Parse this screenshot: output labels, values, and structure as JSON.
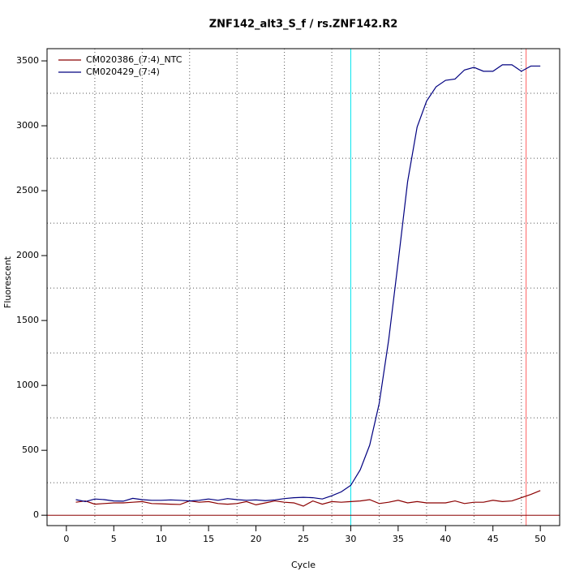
{
  "chart_data": {
    "type": "line",
    "title": "ZNF142_alt3_S_f / rs.ZNF142.R2",
    "x_label": "Cycle",
    "y_label": "Fluorescent",
    "x": [
      1,
      2,
      3,
      4,
      5,
      6,
      7,
      8,
      9,
      10,
      11,
      12,
      13,
      14,
      15,
      16,
      17,
      18,
      19,
      20,
      21,
      22,
      23,
      24,
      25,
      26,
      27,
      28,
      29,
      30,
      31,
      32,
      33,
      34,
      35,
      36,
      37,
      38,
      39,
      40,
      41,
      42,
      43,
      44,
      45,
      46,
      47,
      48,
      49,
      50
    ],
    "series": [
      {
        "name": "CM020386_(7:4)_NTC",
        "color": "#8b0000",
        "values": [
          100,
          110,
          85,
          90,
          95,
          95,
          100,
          105,
          90,
          88,
          85,
          83,
          110,
          100,
          105,
          90,
          85,
          90,
          105,
          80,
          95,
          110,
          100,
          95,
          70,
          110,
          85,
          105,
          100,
          105,
          110,
          120,
          90,
          100,
          115,
          95,
          105,
          95,
          95,
          95,
          110,
          90,
          100,
          100,
          115,
          105,
          110,
          135,
          160,
          190
        ]
      },
      {
        "name": "CM020429_(7:4)",
        "color": "#000080",
        "values": [
          120,
          105,
          125,
          120,
          110,
          108,
          130,
          120,
          115,
          115,
          118,
          115,
          110,
          115,
          125,
          115,
          128,
          120,
          115,
          118,
          112,
          118,
          128,
          135,
          138,
          135,
          125,
          150,
          180,
          230,
          350,
          540,
          860,
          1350,
          1950,
          2570,
          2990,
          3190,
          3300,
          3350,
          3360,
          3430,
          3450,
          3420,
          3420,
          3470,
          3470,
          3420,
          3460,
          3460
        ]
      }
    ],
    "xlim": [
      -2.04,
      52.04
    ],
    "ylim": [
      -80,
      3594
    ],
    "xticks": [
      0,
      5,
      10,
      15,
      20,
      25,
      30,
      35,
      40,
      45,
      50
    ],
    "yticks": [
      0,
      500,
      1000,
      1500,
      2000,
      2500,
      3000,
      3500
    ],
    "grid": true,
    "xgrid": [
      3,
      8,
      13,
      18,
      23,
      28,
      33,
      38,
      43,
      48
    ],
    "ygrid": [
      250,
      750,
      1250,
      1750,
      2250,
      2750,
      3250
    ],
    "vlines": [
      {
        "value": 30,
        "color": "#00e5ee"
      },
      {
        "value": 48.5,
        "color": "#ff6060"
      }
    ],
    "hline": {
      "value": 0,
      "color": "#8b0000"
    },
    "legend": "top-left"
  }
}
